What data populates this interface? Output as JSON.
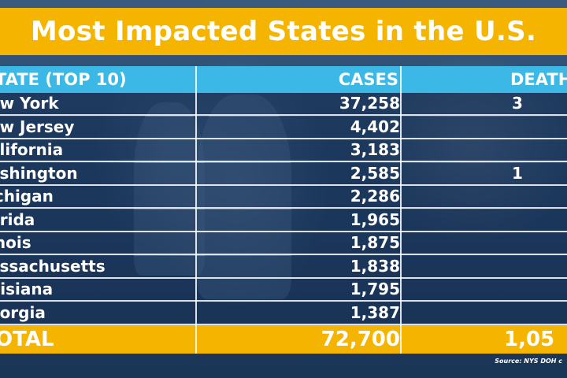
{
  "title": "Most Impacted States in the U.S.",
  "colors": {
    "title_bar": "#f5b400",
    "header_bar": "#3bb8e6",
    "total_bar": "#f5b400",
    "row_bg": "#1c3a5e"
  },
  "table": {
    "headers": {
      "state": "TATE (TOP 10)",
      "cases": "CASES",
      "deaths": "DEATH"
    },
    "rows": [
      {
        "state": "ew York",
        "cases": "37,258",
        "deaths": "3"
      },
      {
        "state": "ew Jersey",
        "cases": "4,402",
        "deaths": ""
      },
      {
        "state": "alifornia",
        "cases": "3,183",
        "deaths": ""
      },
      {
        "state": "ashington",
        "cases": "2,585",
        "deaths": "1"
      },
      {
        "state": "ichigan",
        "cases": "2,286",
        "deaths": ""
      },
      {
        "state": "orida",
        "cases": "1,965",
        "deaths": ""
      },
      {
        "state": "inois",
        "cases": "1,875",
        "deaths": ""
      },
      {
        "state": "assachusetts",
        "cases": "1,838",
        "deaths": ""
      },
      {
        "state": "uisiana",
        "cases": "1,795",
        "deaths": ""
      },
      {
        "state": "eorgia",
        "cases": "1,387",
        "deaths": ""
      }
    ],
    "total": {
      "label": "OTAL",
      "cases": "72,700",
      "deaths": "1,05"
    }
  },
  "source": "Source: NYS DOH c"
}
